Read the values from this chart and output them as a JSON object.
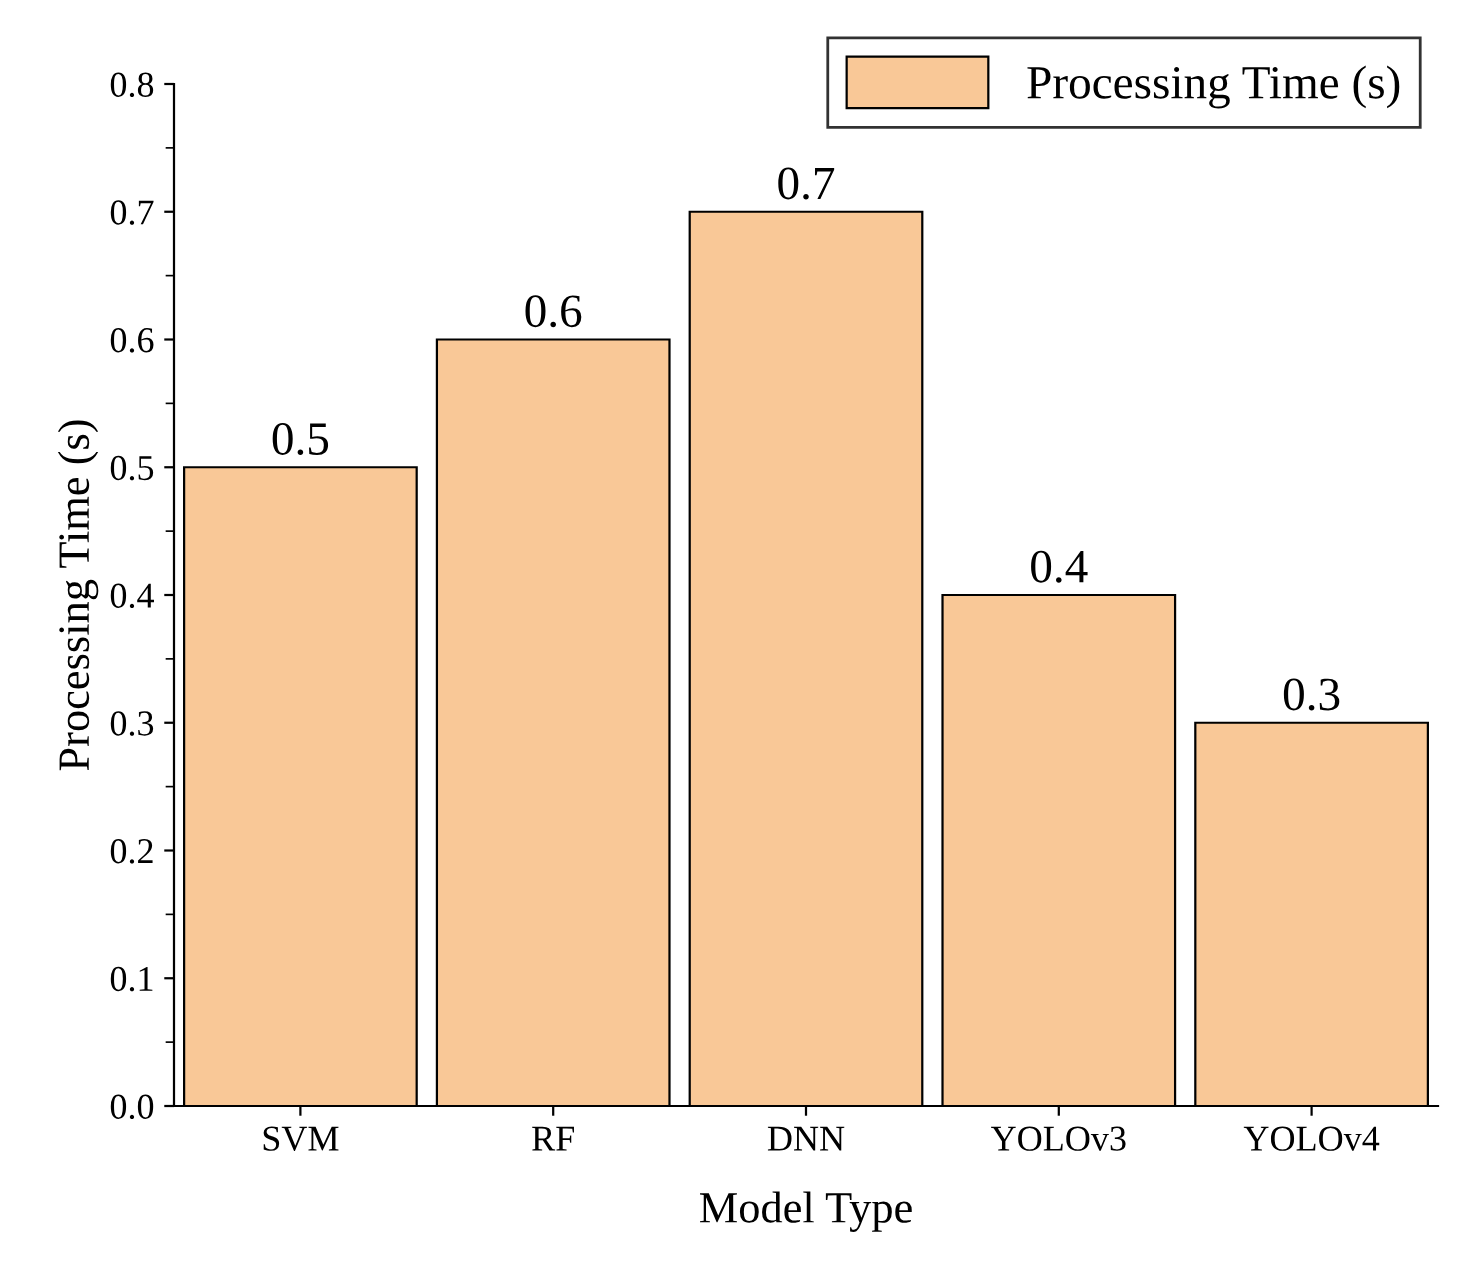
{
  "chart_data": {
    "type": "bar",
    "xlabel": "Model Type",
    "ylabel": "Processing Time (s)",
    "categories": [
      "SVM",
      "RF",
      "DNN",
      "YOLOv3",
      "YOLOv4"
    ],
    "series": [
      {
        "name": "Processing Time (s)",
        "color": "#f9c897",
        "values": [
          0.5,
          0.6,
          0.7,
          0.4,
          0.3
        ]
      }
    ],
    "ylim": [
      0,
      0.8
    ],
    "yticks": [
      {
        "value": 0,
        "label": "0.0"
      },
      0.1,
      0.2,
      0.3,
      0.4,
      0.5,
      0.6,
      0.7,
      0.8
    ],
    "data_labels": true,
    "grid": false,
    "legend": "top right"
  }
}
